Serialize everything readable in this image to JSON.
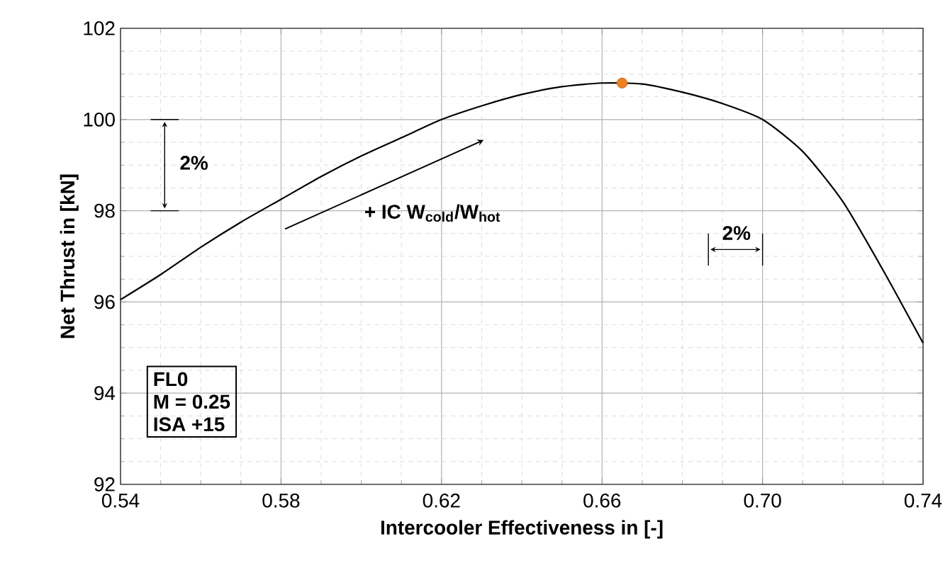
{
  "chart_data": {
    "type": "line",
    "xlabel": "Intercooler Effectiveness in [-]",
    "ylabel": "Net Thrust in [kN]",
    "xlim": [
      0.54,
      0.74
    ],
    "xticks": [
      {
        "value": 0.54,
        "label": "0.54"
      },
      {
        "value": 0.58,
        "label": "0.58"
      },
      {
        "value": 0.62,
        "label": "0.62"
      },
      {
        "value": 0.66,
        "label": "0.66"
      },
      {
        "value": 0.7,
        "label": "0.70"
      },
      {
        "value": 0.74,
        "label": "0.74"
      }
    ],
    "ylim": [
      92,
      102
    ],
    "yticks": [
      92,
      94,
      96,
      98,
      100,
      102
    ],
    "grid": true,
    "series": [
      {
        "color": "#000000",
        "x": [
          0.54,
          0.55,
          0.56,
          0.57,
          0.58,
          0.59,
          0.6,
          0.61,
          0.62,
          0.63,
          0.64,
          0.65,
          0.66,
          0.67,
          0.68,
          0.69,
          0.7,
          0.71,
          0.72,
          0.73,
          0.74
        ],
        "values": [
          96.05,
          96.6,
          97.2,
          97.75,
          98.25,
          98.75,
          99.2,
          99.6,
          100.0,
          100.3,
          100.55,
          100.72,
          100.8,
          100.78,
          100.6,
          100.35,
          100.0,
          99.3,
          98.2,
          96.7,
          95.1
        ]
      },
      {
        "type": "scatter",
        "color": "#f07f1e",
        "marker": "circle",
        "x": [
          0.665
        ],
        "values": [
          100.8
        ]
      }
    ],
    "annotations": [
      "2%",
      "+ IC W$_{cold}$/W$_{hot}$",
      "2%",
      "FL0",
      "M = 0.25",
      "ISA +15"
    ]
  }
}
